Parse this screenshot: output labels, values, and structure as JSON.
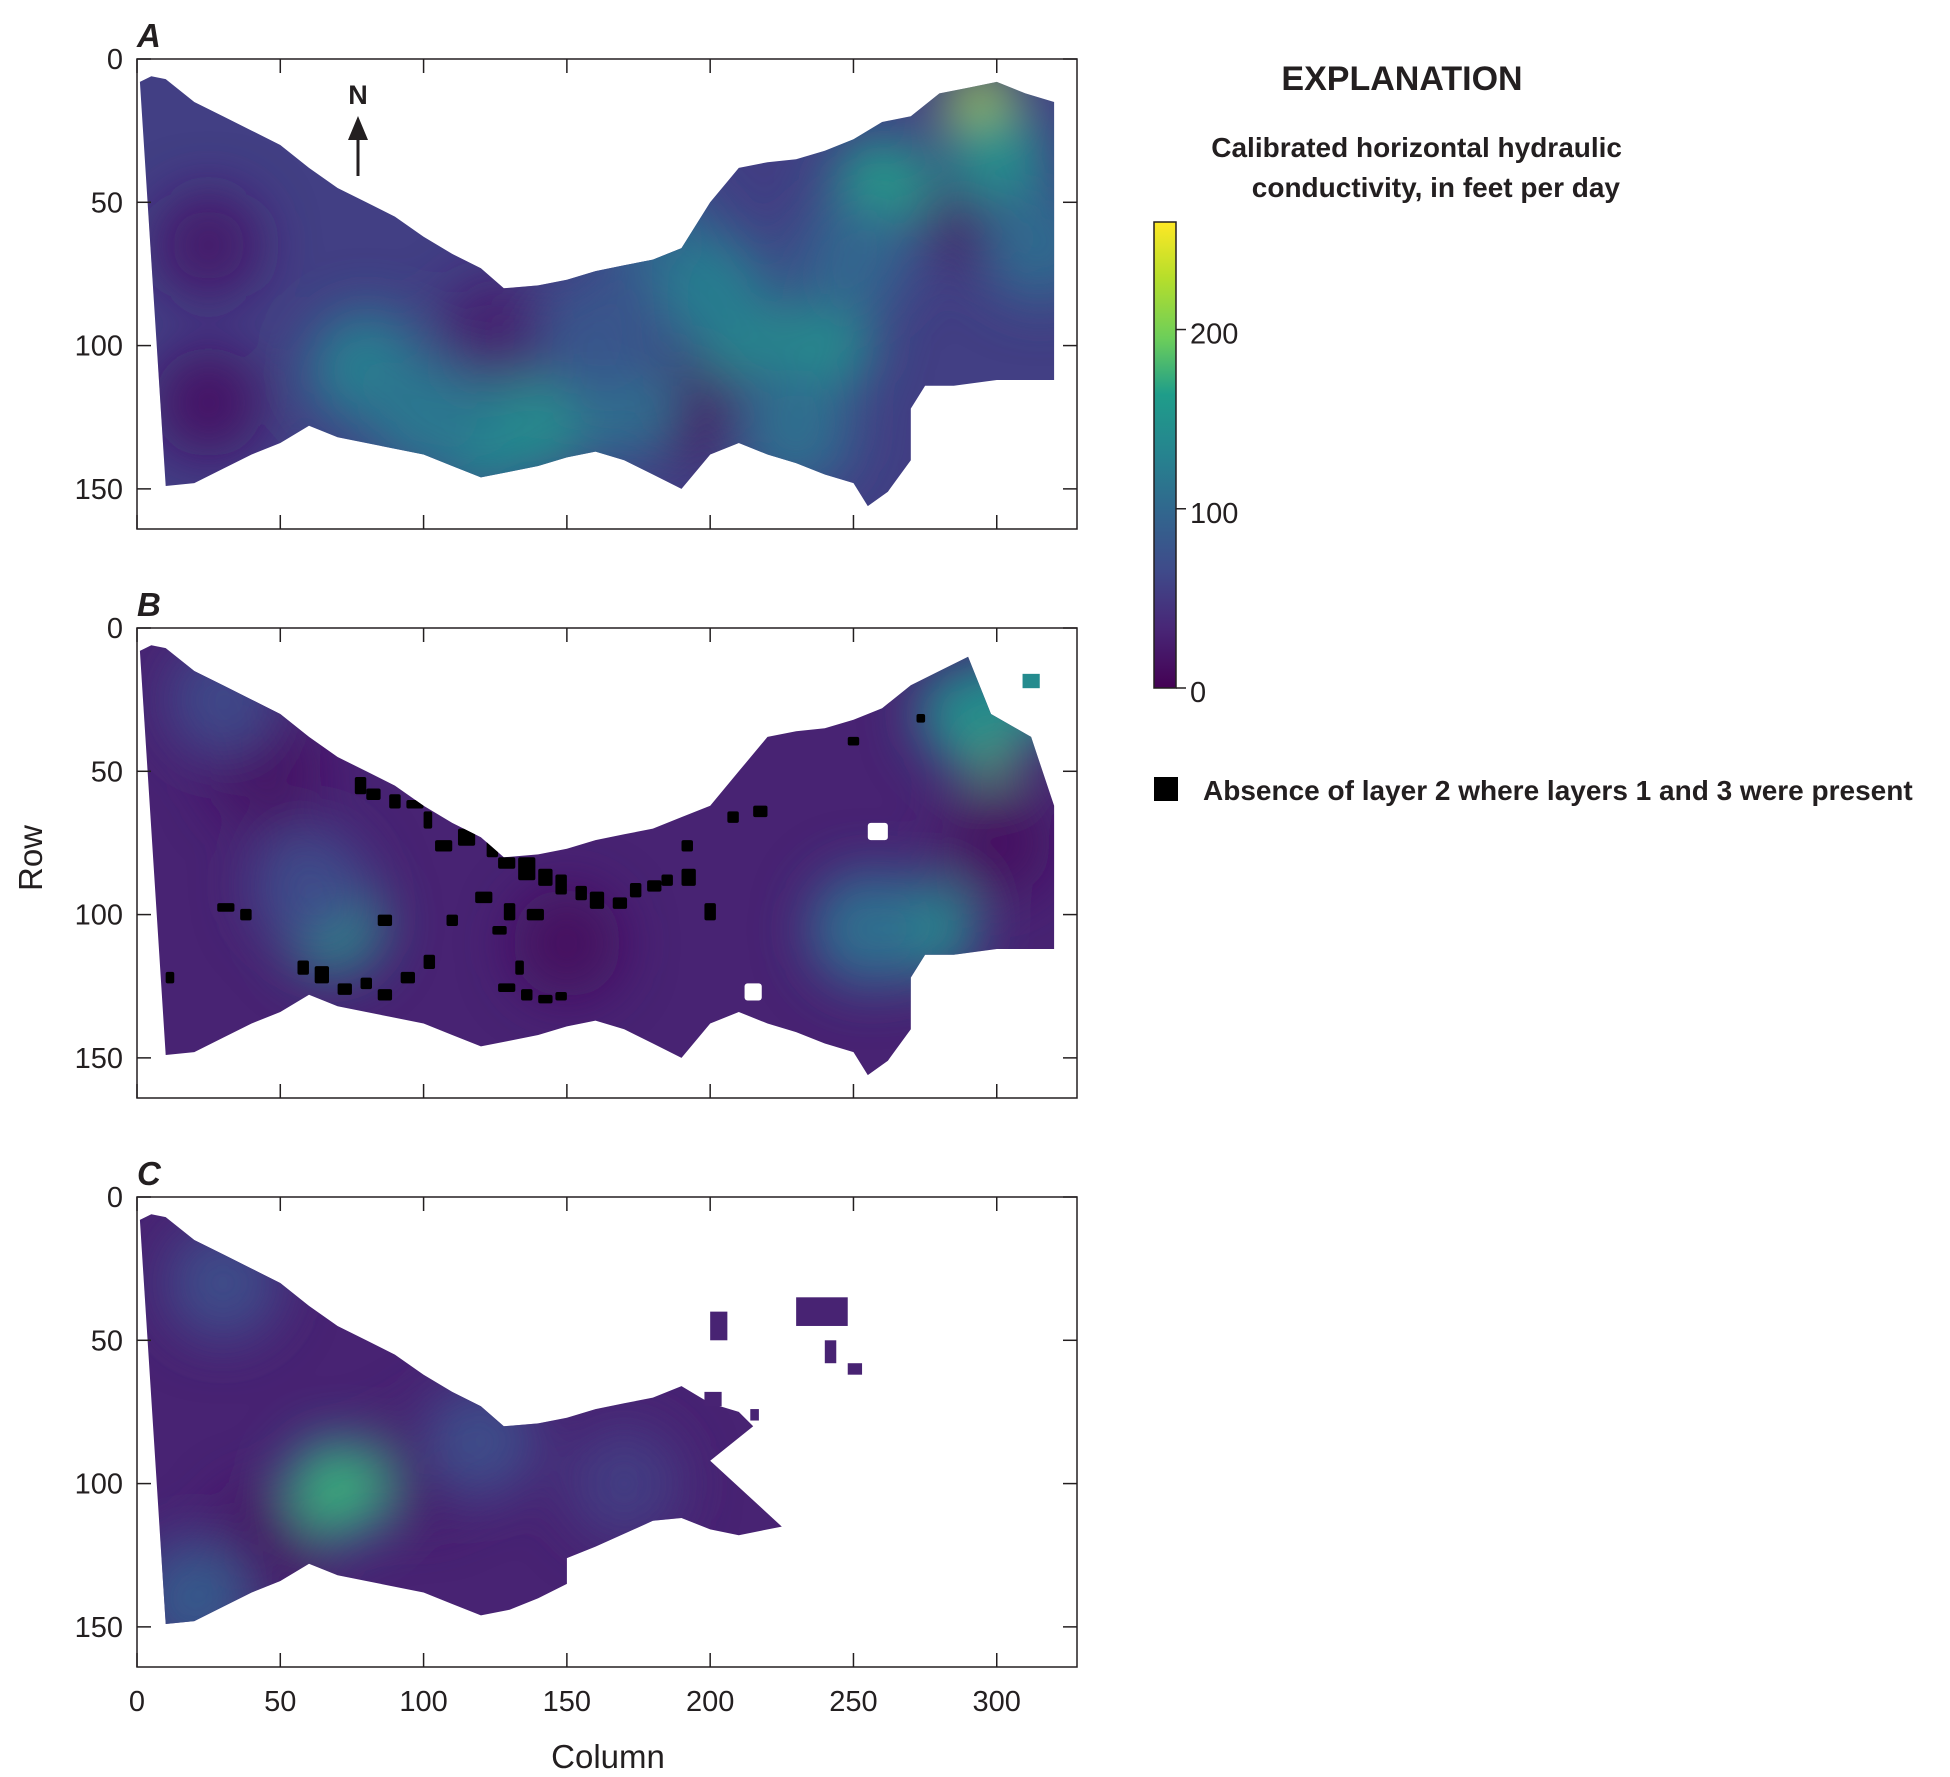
{
  "figure": {
    "xlabel": "Column",
    "ylabel": "Row"
  },
  "colors": {
    "viridis_low": "#440154",
    "viridis_mid": "#21918c",
    "viridis_high": "#fde725",
    "absent_layer": "#000000",
    "axis": "#231f20"
  },
  "explanation": {
    "title": "EXPLANATION",
    "colorbar_title_line1": "Calibrated horizontal hydraulic",
    "colorbar_title_line2": "conductivity, in feet per day",
    "colorbar_ticks": [
      "0",
      "100",
      "200"
    ],
    "colorbar_max": 260,
    "legend_label": "Absence of layer 2 where layers 1 and 3 were present"
  },
  "north_arrow": {
    "label": "N"
  },
  "chart_data": [
    {
      "type": "heatmap",
      "panel": "A",
      "xlim": [
        0,
        328
      ],
      "ylim": [
        164,
        0
      ],
      "xticks": [
        "0",
        "50",
        "100",
        "150",
        "200",
        "250",
        "300"
      ],
      "yticks": [
        "0",
        "50",
        "100",
        "150"
      ],
      "shown_xtick_labels": false,
      "extent": {
        "top": [
          [
            1,
            8
          ],
          [
            5,
            6
          ],
          [
            10,
            7
          ],
          [
            20,
            15
          ],
          [
            30,
            20
          ],
          [
            40,
            25
          ],
          [
            50,
            30
          ],
          [
            60,
            38
          ],
          [
            70,
            45
          ],
          [
            80,
            50
          ],
          [
            90,
            55
          ],
          [
            100,
            62
          ],
          [
            110,
            68
          ],
          [
            120,
            73
          ],
          [
            128,
            80
          ],
          [
            140,
            79
          ],
          [
            150,
            77
          ],
          [
            160,
            74
          ],
          [
            170,
            72
          ],
          [
            180,
            70
          ],
          [
            190,
            66
          ],
          [
            200,
            50
          ],
          [
            210,
            38
          ],
          [
            220,
            36
          ],
          [
            230,
            35
          ],
          [
            240,
            32
          ],
          [
            250,
            28
          ],
          [
            260,
            22
          ],
          [
            270,
            20
          ],
          [
            280,
            12
          ],
          [
            290,
            10
          ],
          [
            300,
            8
          ],
          [
            310,
            12
          ],
          [
            320,
            15
          ]
        ],
        "bottom": [
          [
            320,
            112
          ],
          [
            300,
            112
          ],
          [
            285,
            114
          ],
          [
            275,
            114
          ],
          [
            270,
            122
          ],
          [
            270,
            140
          ],
          [
            262,
            151
          ],
          [
            255,
            156
          ],
          [
            250,
            148
          ],
          [
            240,
            145
          ],
          [
            230,
            141
          ],
          [
            220,
            138
          ],
          [
            210,
            134
          ],
          [
            200,
            138
          ],
          [
            190,
            150
          ],
          [
            180,
            145
          ],
          [
            170,
            140
          ],
          [
            160,
            137
          ],
          [
            150,
            139
          ],
          [
            140,
            142
          ],
          [
            130,
            144
          ],
          [
            120,
            146
          ],
          [
            110,
            142
          ],
          [
            100,
            138
          ],
          [
            80,
            134
          ],
          [
            70,
            132
          ],
          [
            60,
            128
          ],
          [
            50,
            134
          ],
          [
            40,
            138
          ],
          [
            30,
            143
          ],
          [
            20,
            148
          ],
          [
            10,
            149
          ]
        ]
      },
      "hotspots": [
        {
          "column": 295,
          "row": 18,
          "value": 240
        },
        {
          "column": 300,
          "row": 35,
          "value": 150
        },
        {
          "column": 260,
          "row": 45,
          "value": 165
        },
        {
          "column": 240,
          "row": 100,
          "value": 145
        },
        {
          "column": 210,
          "row": 95,
          "value": 150
        },
        {
          "column": 140,
          "row": 128,
          "value": 160
        },
        {
          "column": 120,
          "row": 132,
          "value": 140
        },
        {
          "column": 80,
          "row": 108,
          "value": 130
        },
        {
          "column": 100,
          "row": 124,
          "value": 120
        },
        {
          "column": 170,
          "row": 120,
          "value": 110
        },
        {
          "column": 180,
          "row": 60,
          "value": 95
        },
        {
          "column": 250,
          "row": 70,
          "value": 100
        },
        {
          "column": 200,
          "row": 80,
          "value": 125
        },
        {
          "column": 160,
          "row": 95,
          "value": 80
        },
        {
          "column": 230,
          "row": 130,
          "value": 110
        },
        {
          "column": 315,
          "row": 65,
          "value": 105
        }
      ],
      "lows": [
        {
          "column": 295,
          "row": 55,
          "value": 15
        },
        {
          "column": 190,
          "row": 122,
          "value": 12
        },
        {
          "column": 25,
          "row": 120,
          "value": 15
        },
        {
          "column": 25,
          "row": 65,
          "value": 20
        },
        {
          "column": 125,
          "row": 95,
          "value": 25
        }
      ]
    },
    {
      "type": "heatmap",
      "panel": "B",
      "xlim": [
        0,
        328
      ],
      "ylim": [
        164,
        0
      ],
      "xticks": [
        "0",
        "50",
        "100",
        "150",
        "200",
        "250",
        "300"
      ],
      "yticks": [
        "0",
        "50",
        "100",
        "150"
      ],
      "shown_xtick_labels": false,
      "extent": {
        "top": [
          [
            1,
            8
          ],
          [
            5,
            6
          ],
          [
            10,
            7
          ],
          [
            20,
            15
          ],
          [
            30,
            20
          ],
          [
            40,
            25
          ],
          [
            50,
            30
          ],
          [
            60,
            38
          ],
          [
            70,
            45
          ],
          [
            80,
            50
          ],
          [
            90,
            55
          ],
          [
            100,
            62
          ],
          [
            110,
            68
          ],
          [
            120,
            73
          ],
          [
            128,
            80
          ],
          [
            140,
            79
          ],
          [
            150,
            77
          ],
          [
            160,
            74
          ],
          [
            170,
            72
          ],
          [
            180,
            70
          ],
          [
            190,
            66
          ],
          [
            200,
            62
          ],
          [
            210,
            50
          ],
          [
            220,
            38
          ],
          [
            230,
            36
          ],
          [
            240,
            35
          ],
          [
            250,
            32
          ],
          [
            260,
            28
          ],
          [
            270,
            20
          ],
          [
            280,
            15
          ],
          [
            290,
            10
          ],
          [
            298,
            30
          ],
          [
            312,
            38
          ],
          [
            320,
            62
          ]
        ],
        "bottom": [
          [
            320,
            112
          ],
          [
            300,
            112
          ],
          [
            285,
            114
          ],
          [
            275,
            114
          ],
          [
            270,
            122
          ],
          [
            270,
            140
          ],
          [
            262,
            151
          ],
          [
            255,
            156
          ],
          [
            250,
            148
          ],
          [
            240,
            145
          ],
          [
            230,
            141
          ],
          [
            220,
            138
          ],
          [
            210,
            134
          ],
          [
            200,
            138
          ],
          [
            190,
            150
          ],
          [
            180,
            145
          ],
          [
            170,
            140
          ],
          [
            160,
            137
          ],
          [
            150,
            139
          ],
          [
            140,
            142
          ],
          [
            130,
            144
          ],
          [
            120,
            146
          ],
          [
            110,
            142
          ],
          [
            100,
            138
          ],
          [
            80,
            134
          ],
          [
            70,
            132
          ],
          [
            60,
            128
          ],
          [
            50,
            134
          ],
          [
            40,
            138
          ],
          [
            30,
            143
          ],
          [
            20,
            148
          ],
          [
            10,
            149
          ]
        ]
      },
      "hotspots": [
        {
          "column": 296,
          "row": 40,
          "value": 220
        },
        {
          "column": 290,
          "row": 30,
          "value": 150
        },
        {
          "column": 275,
          "row": 105,
          "value": 150
        },
        {
          "column": 255,
          "row": 105,
          "value": 110
        },
        {
          "column": 68,
          "row": 103,
          "value": 165
        },
        {
          "column": 60,
          "row": 90,
          "value": 70
        },
        {
          "column": 30,
          "row": 25,
          "value": 65
        },
        {
          "column": 315,
          "row": 20,
          "value": 150
        }
      ],
      "lows": [
        {
          "column": 45,
          "row": 50,
          "value": 15
        },
        {
          "column": 150,
          "row": 110,
          "value": 10
        },
        {
          "column": 300,
          "row": 75,
          "value": 12
        }
      ],
      "absent_layer_present": true
    },
    {
      "type": "heatmap",
      "panel": "C",
      "xlim": [
        0,
        328
      ],
      "ylim": [
        164,
        0
      ],
      "xticks": [
        "0",
        "50",
        "100",
        "150",
        "200",
        "250",
        "300"
      ],
      "yticks": [
        "0",
        "50",
        "100",
        "150"
      ],
      "shown_xtick_labels": true,
      "extent": {
        "top": [
          [
            1,
            8
          ],
          [
            5,
            6
          ],
          [
            10,
            7
          ],
          [
            20,
            15
          ],
          [
            30,
            20
          ],
          [
            40,
            25
          ],
          [
            50,
            30
          ],
          [
            60,
            38
          ],
          [
            70,
            45
          ],
          [
            80,
            50
          ],
          [
            90,
            55
          ],
          [
            100,
            62
          ],
          [
            110,
            68
          ],
          [
            120,
            73
          ],
          [
            128,
            80
          ],
          [
            140,
            79
          ],
          [
            150,
            77
          ],
          [
            160,
            74
          ],
          [
            170,
            72
          ],
          [
            180,
            70
          ],
          [
            190,
            66
          ],
          [
            200,
            72
          ],
          [
            210,
            75
          ],
          [
            215,
            80
          ]
        ],
        "bottom": [
          [
            215,
            80
          ],
          [
            200,
            92
          ],
          [
            225,
            115
          ],
          [
            210,
            118
          ],
          [
            200,
            116
          ],
          [
            190,
            112
          ],
          [
            180,
            113
          ],
          [
            160,
            122
          ],
          [
            150,
            126
          ],
          [
            150,
            135
          ],
          [
            140,
            140
          ],
          [
            130,
            144
          ],
          [
            120,
            146
          ],
          [
            110,
            142
          ],
          [
            100,
            138
          ],
          [
            80,
            134
          ],
          [
            70,
            132
          ],
          [
            60,
            128
          ],
          [
            50,
            134
          ],
          [
            40,
            138
          ],
          [
            30,
            143
          ],
          [
            20,
            148
          ],
          [
            10,
            149
          ]
        ]
      },
      "hotspots": [
        {
          "column": 70,
          "row": 102,
          "value": 175
        },
        {
          "column": 30,
          "row": 30,
          "value": 70
        },
        {
          "column": 20,
          "row": 140,
          "value": 85
        },
        {
          "column": 120,
          "row": 85,
          "value": 70
        },
        {
          "column": 170,
          "row": 100,
          "value": 55
        }
      ],
      "lows": [
        {
          "column": 45,
          "row": 120,
          "value": 15
        },
        {
          "column": 100,
          "row": 95,
          "value": 20
        }
      ]
    }
  ]
}
